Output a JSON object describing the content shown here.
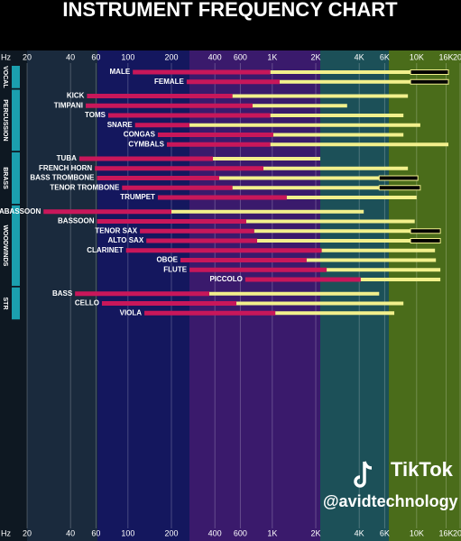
{
  "chart_data": {
    "type": "range-bar",
    "title": "INSTRUMENT FREQUENCY CHART",
    "axis_label": "Hz",
    "log_x": true,
    "grid": true,
    "xlim": [
      20,
      20000
    ],
    "xticks": [
      20,
      40,
      60,
      100,
      200,
      400,
      600,
      {
        "value": 1000,
        "label": "1K"
      },
      {
        "value": 2000,
        "label": "2K"
      },
      {
        "value": 4000,
        "label": "4K"
      },
      {
        "value": 6000,
        "label": "6K"
      },
      {
        "value": 10000,
        "label": "10K"
      },
      {
        "value": 16000,
        "label": "16K"
      },
      {
        "value": 20000,
        "label": "20K"
      }
    ],
    "colors": {
      "fundamental": "#c8175a",
      "harmonics": "#f2f08c",
      "group": "#1b9fae"
    },
    "groups": [
      {
        "name": "VOCAL",
        "instruments": [
          {
            "name": "MALE",
            "range": [
              108,
              970,
              9070,
              16600
            ]
          },
          {
            "name": "FEMALE",
            "range": [
              255,
              1125,
              9070,
              16600
            ]
          }
        ]
      },
      {
        "name": "PERCUSSION",
        "instruments": [
          {
            "name": "KICK",
            "range": [
              52,
              530,
              8700,
              null
            ]
          },
          {
            "name": "TIMPANI",
            "range": [
              51,
              730,
              3300,
              null
            ]
          },
          {
            "name": "TOMS",
            "range": [
              73,
              970,
              8100,
              null
            ]
          },
          {
            "name": "SNARE",
            "range": [
              112,
              267,
              10600,
              null
            ]
          },
          {
            "name": "CONGAS",
            "range": [
              161,
              1016,
              8100,
              null
            ]
          },
          {
            "name": "CYMBALS",
            "range": [
              186,
              970,
              16600,
              null
            ]
          }
        ]
      },
      {
        "name": "BRASS",
        "instruments": [
          {
            "name": "TUBA",
            "range": [
              46,
              388,
              2150,
              null
            ]
          },
          {
            "name": "FRENCH HORN",
            "range": [
              59,
              868,
              8700,
              null
            ]
          },
          {
            "name": "BASS TROMBONE",
            "range": [
              61,
              429,
              5500,
              10200
            ]
          },
          {
            "name": "TENOR TROMBONE",
            "range": [
              91,
              530,
              5500,
              10600
            ]
          },
          {
            "name": "TRUMPET",
            "range": [
              161,
              1260,
              10000,
              null
            ]
          }
        ]
      },
      {
        "name": "WOODWINDS",
        "instruments": [
          {
            "name": "CONTRABASSOON",
            "range": [
              26,
              200,
              4300,
              null
            ]
          },
          {
            "name": "BASSOON",
            "range": [
              61,
              660,
              9700,
              null
            ]
          },
          {
            "name": "TENOR SAX",
            "range": [
              121,
              750,
              9070,
              14600
            ]
          },
          {
            "name": "ALTO SAX",
            "range": [
              134,
              785,
              9070,
              14600
            ]
          },
          {
            "name": "CLARINET",
            "range": [
              97,
              2200,
              13400,
              null
            ]
          },
          {
            "name": "OBOE",
            "range": [
              231,
              1730,
              13600,
              null
            ]
          },
          {
            "name": "FLUTE",
            "range": [
              267,
              2380,
              14600,
              null
            ]
          },
          {
            "name": "PICCOLO",
            "range": [
              650,
              4100,
              14600,
              null
            ]
          }
        ]
      },
      {
        "name": "STR",
        "instruments": [
          {
            "name": "BASS",
            "range": [
              43,
              366,
              5500,
              null
            ]
          },
          {
            "name": "CELLO",
            "range": [
              66,
              564,
              8100,
              null
            ]
          },
          {
            "name": "VIOLA",
            "range": [
              130,
              1050,
              7000,
              null
            ]
          }
        ]
      }
    ],
    "watermark": {
      "logo": "TikTok",
      "handle": "@avidtechnology"
    }
  }
}
